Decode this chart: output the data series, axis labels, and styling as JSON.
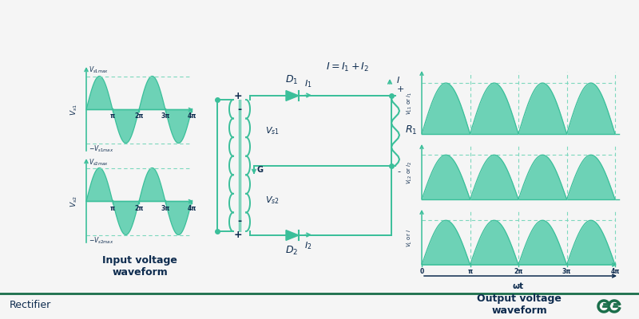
{
  "bg_color": "#f5f5f5",
  "wave_fill_color": "#5ecfb0",
  "wave_line_color": "#3bbf9a",
  "circuit_color": "#3bbf9a",
  "text_dark": "#0d2b4e",
  "dashed_color": "#7dd8be",
  "footer_line_color": "#1a6e4a",
  "footer_text": "Rectifier",
  "logo_color": "#1a6e4a",
  "title_input": "Input voltage\nwaveform",
  "title_output": "Output voltage\nwaveform"
}
